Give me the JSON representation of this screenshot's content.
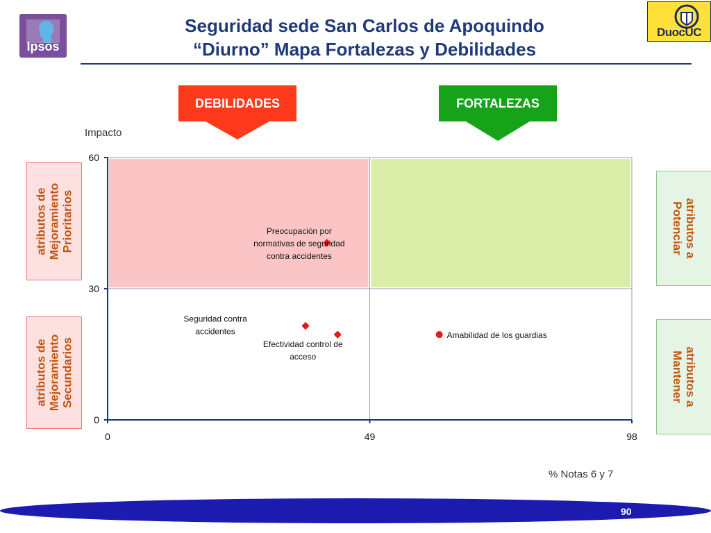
{
  "logos": {
    "left": "Ipsos",
    "right": "DuocUC"
  },
  "title": {
    "line1": "Seguridad sede San Carlos de Apoquindo",
    "line2": "“Diurno” Mapa Fortalezas y Debilidades"
  },
  "callouts": {
    "left": "DEBILIDADES",
    "right": "FORTALEZAS"
  },
  "side_labels": {
    "left_top": "atributos de\nMejoramiento\nPrioritarios",
    "left_bottom": "atributos de\nMejoramiento\nSecundarios",
    "right_top": "atributos a\nPotenciar",
    "right_bottom": "atributos a\nMantener"
  },
  "colors": {
    "quadrant_top_left": "#fbc5c5",
    "quadrant_top_right": "#dcedaa",
    "point": "#e01b1b",
    "axis": "#1f2f8a",
    "footer": "#1b1bb0"
  },
  "chart_data": {
    "type": "scatter",
    "ylabel": "Impacto",
    "xlabel": "% Notas 6 y 7",
    "xlim": [
      0,
      98
    ],
    "ylim": [
      0,
      60
    ],
    "x_ticks": [
      0,
      49,
      98
    ],
    "y_ticks": [
      0,
      30,
      60
    ],
    "x_split": 49,
    "y_split": 30,
    "points": [
      {
        "label": "Preocupación por normativas de seguridad contra accidentes",
        "label_lines": [
          "Preocupación por",
          "normativas de seguridad",
          "contra accidentes"
        ],
        "x": 41,
        "y": 40.5,
        "marker": "diamond"
      },
      {
        "label": "Seguridad contra accidentes",
        "label_lines": [
          "Seguridad contra",
          "accidentes"
        ],
        "x": 37,
        "y": 21.5,
        "marker": "diamond"
      },
      {
        "label": "Efectividad control de acceso",
        "label_lines": [
          "Efectividad control de",
          "acceso"
        ],
        "x": 43,
        "y": 19.5,
        "marker": "diamond"
      },
      {
        "label": "Amabilidad de los guardias",
        "label_lines": [
          "Amabilidad de los guardias"
        ],
        "x": 62,
        "y": 19.5,
        "marker": "circle"
      }
    ]
  },
  "footer": {
    "page": "90"
  }
}
